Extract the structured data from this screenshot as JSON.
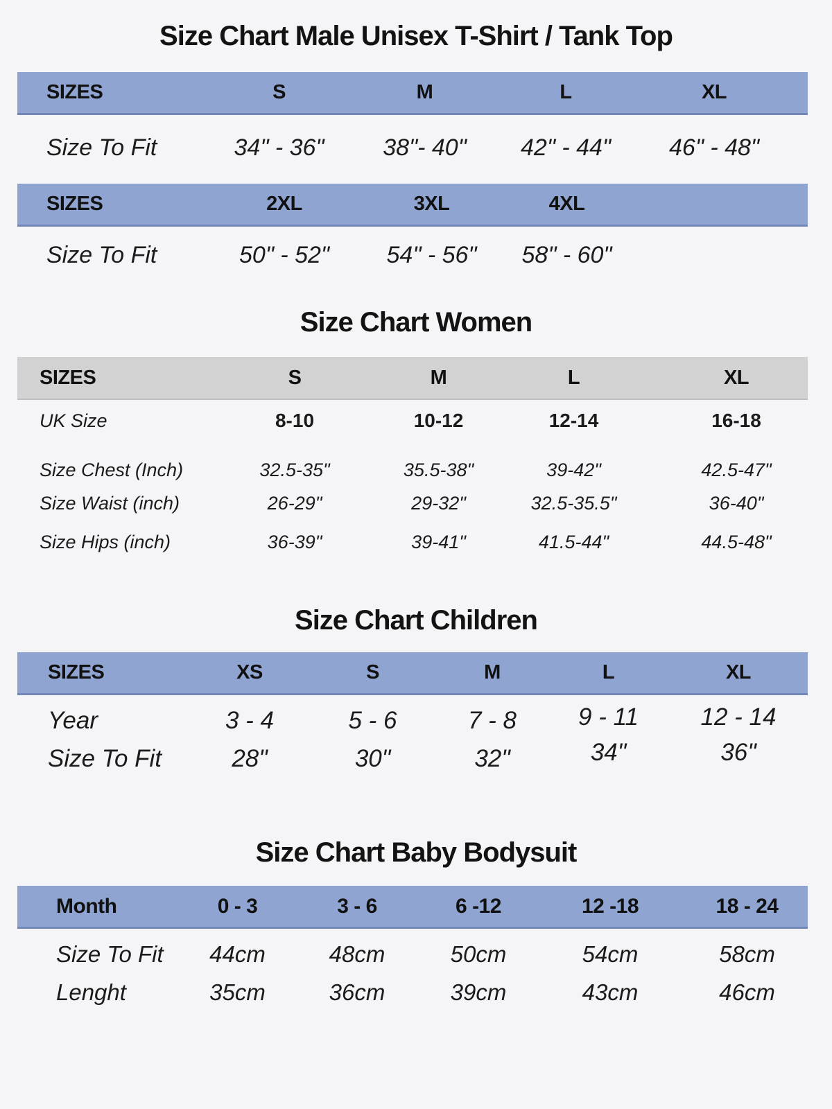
{
  "colors": {
    "background": "#f5f5f7",
    "header_blue": "#8fa4d0",
    "header_blue_border": "#7487b9",
    "header_gray": "#d2d2d2",
    "text": "#161616"
  },
  "men": {
    "title": "Size Chart Male Unisex T-Shirt / Tank Top",
    "t1": {
      "h": [
        "SIZES",
        "S",
        "M",
        "L",
        "XL"
      ],
      "label": "Size To Fit",
      "v": [
        "34\" - 36\"",
        "38\"- 40\"",
        "42\" - 44\"",
        "46\" - 48\""
      ]
    },
    "t2": {
      "h": [
        "SIZES",
        "2XL",
        "3XL",
        "4XL"
      ],
      "label": "Size To Fit",
      "v": [
        "50\" - 52\"",
        "54\" - 56\"",
        "58\" - 60\""
      ]
    }
  },
  "women": {
    "title": "Size Chart Women",
    "h": [
      "SIZES",
      "S",
      "M",
      "L",
      "XL"
    ],
    "rows": [
      {
        "label": "UK Size",
        "v": [
          "8-10",
          "10-12",
          "12-14",
          "16-18"
        ]
      },
      {
        "label": "Size Chest (Inch)",
        "v": [
          "32.5-35\"",
          "35.5-38\"",
          "39-42\"",
          "42.5-47\""
        ]
      },
      {
        "label": "Size Waist (inch)",
        "v": [
          "26-29\"",
          "29-32\"",
          "32.5-35.5\"",
          "36-40\""
        ]
      },
      {
        "label": "Size Hips (inch)",
        "v": [
          "36-39\"",
          "39-41\"",
          "41.5-44\"",
          "44.5-48\""
        ]
      }
    ]
  },
  "children": {
    "title": "Size Chart Children",
    "h": [
      "SIZES",
      "XS",
      "S",
      "M",
      "L",
      "XL"
    ],
    "rows": [
      {
        "label": "Year",
        "v": [
          "3 - 4",
          "5 - 6",
          "7 - 8",
          "9 - 11",
          "12 - 14"
        ]
      },
      {
        "label": "Size To Fit",
        "v": [
          "28\"",
          "30\"",
          "32\"",
          "34\"",
          "36\""
        ]
      }
    ]
  },
  "baby": {
    "title": "Size Chart Baby Bodysuit",
    "h": [
      "Month",
      "0 - 3",
      "3 - 6",
      "6 -12",
      "12 -18",
      "18 - 24"
    ],
    "rows": [
      {
        "label": "Size To Fit",
        "v": [
          "44cm",
          "48cm",
          "50cm",
          "54cm",
          "58cm"
        ]
      },
      {
        "label": "Lenght",
        "v": [
          "35cm",
          "36cm",
          "39cm",
          "43cm",
          "46cm"
        ]
      }
    ]
  }
}
